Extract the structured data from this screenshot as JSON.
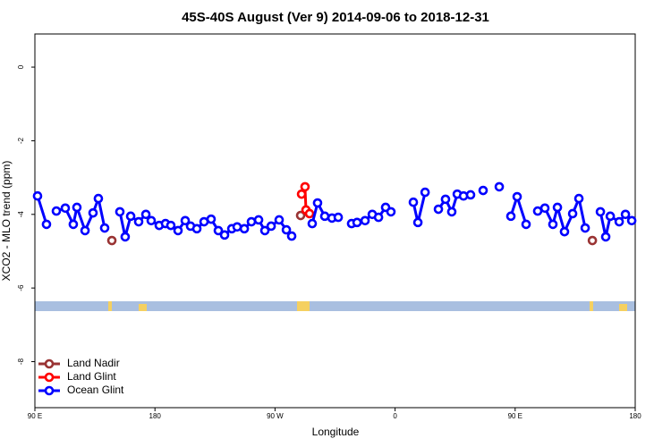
{
  "chart_data": {
    "type": "line",
    "title": "45S-40S August (Ver 9)   2014-09-06 to 2018-12-31",
    "x_label": "Longitude",
    "y_label": "XCO2 - MLO trend (ppm)",
    "xlim": [
      90,
      540
    ],
    "ylim": [
      -9.25,
      0.9
    ],
    "xticks": [
      {
        "value": 90,
        "label": "90 E"
      },
      180,
      {
        "value": 270,
        "label": "90 W"
      },
      {
        "value": 360,
        "label": "0"
      },
      {
        "value": 450,
        "label": "90 E"
      },
      {
        "value": 540,
        "label": "180"
      }
    ],
    "yticks": [
      0,
      -2,
      -4,
      -6,
      -8
    ],
    "legend": "bottom-left",
    "series": [
      {
        "name": "Land Nadir",
        "color": "#993333",
        "x": [
          147.7,
          null,
          289.2,
          null,
          507.9
        ],
        "values": [
          -4.71,
          null,
          -4.03,
          null,
          -4.71
        ]
      },
      {
        "name": "Land Glint",
        "color": "#ff0000",
        "x": [
          289.9,
          292.5,
          293.2,
          295.9
        ],
        "values": [
          -3.45,
          -3.25,
          -3.88,
          -3.98
        ]
      },
      {
        "name": "Ocean Glint",
        "color": "#0000ff",
        "x": [
          92.0,
          98.7,
          null,
          106.1,
          112.8,
          118.8,
          121.5,
          127.6,
          133.6,
          137.6,
          142.3,
          null,
          153.7,
          157.7,
          161.8,
          167.8,
          173.2,
          177.2,
          183.2,
          187.9,
          191.9,
          197.3,
          202.7,
          206.7,
          211.4,
          216.8,
          222.1,
          227.5,
          232.2,
          237.6,
          241.6,
          247.0,
          252.3,
          257.7,
          262.4,
          267.1,
          273.1,
          278.5,
          282.5,
          null,
          297.9,
          301.9,
          307.3,
          312.7,
          317.4,
          null,
          327.4,
          331.5,
          337.5,
          342.9,
          347.6,
          352.9,
          356.9,
          null,
          373.7,
          377.1,
          382.5,
          null,
          392.5,
          397.8,
          402.5,
          406.6,
          411.3,
          416.6,
          null,
          426.0,
          null,
          438.1,
          null,
          446.8,
          451.5,
          458.2,
          null,
          466.9,
          472.3,
          478.3,
          481.7,
          487.0,
          493.1,
          497.8,
          502.5,
          null,
          513.9,
          517.9,
          521.3,
          528.0,
          532.7,
          537.4
        ],
        "values": [
          -3.5,
          -4.27,
          null,
          -3.91,
          -3.83,
          -4.27,
          -3.81,
          -4.44,
          -3.96,
          -3.57,
          -4.37,
          null,
          -3.93,
          -4.61,
          -4.05,
          -4.2,
          -4.0,
          -4.17,
          -4.3,
          -4.25,
          -4.3,
          -4.44,
          -4.17,
          -4.32,
          -4.39,
          -4.2,
          -4.13,
          -4.44,
          -4.56,
          -4.39,
          -4.34,
          -4.39,
          -4.2,
          -4.15,
          -4.44,
          -4.32,
          -4.15,
          -4.42,
          -4.59,
          null,
          -4.25,
          -3.69,
          -4.05,
          -4.1,
          -4.08,
          null,
          -4.25,
          -4.22,
          -4.17,
          -4.0,
          -4.08,
          -3.81,
          -3.93,
          null,
          -3.67,
          -4.22,
          -3.4,
          null,
          -3.86,
          -3.59,
          -3.93,
          -3.45,
          -3.5,
          -3.47,
          null,
          -3.35,
          null,
          -3.25,
          null,
          -4.05,
          -3.52,
          -4.27,
          null,
          -3.91,
          -3.83,
          -4.27,
          -3.81,
          -4.47,
          -3.98,
          -3.57,
          -4.37,
          null,
          -3.93,
          -4.61,
          -4.05,
          -4.2,
          -4.0,
          -4.17
        ]
      }
    ]
  }
}
